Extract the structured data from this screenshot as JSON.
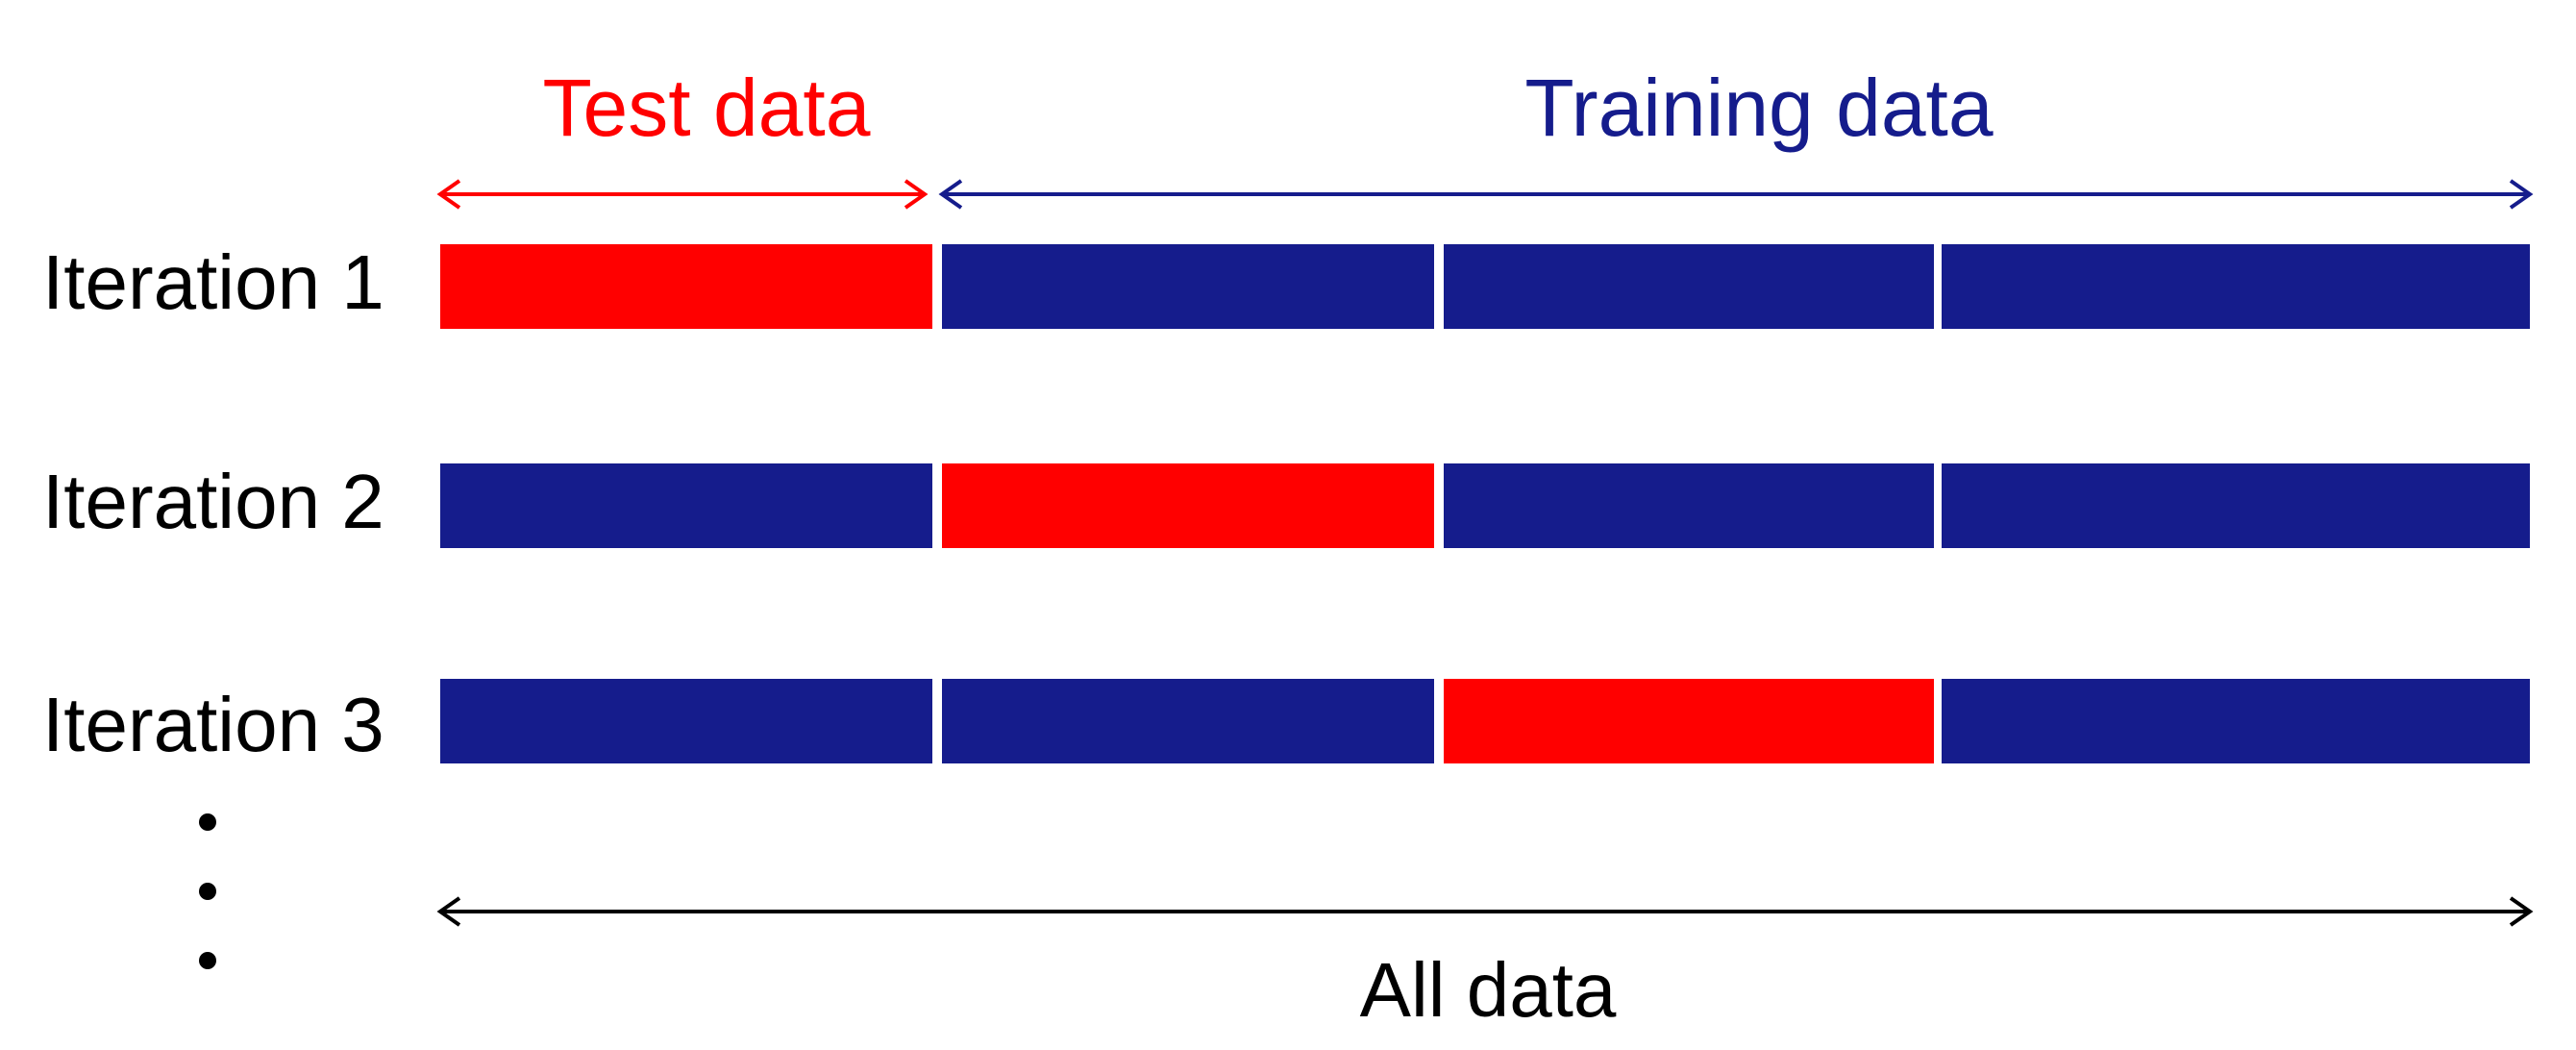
{
  "labels": {
    "test": "Test data",
    "training": "Training data",
    "all": "All data"
  },
  "iterations": [
    {
      "label": "Iteration 1",
      "test_segment": 1
    },
    {
      "label": "Iteration 2",
      "test_segment": 2
    },
    {
      "label": "Iteration 3",
      "test_segment": 3
    }
  ],
  "segments_per_row": 4,
  "colors": {
    "test": "#ff0000",
    "training": "#151c8c",
    "text": "#000000",
    "background": "#ffffff"
  }
}
